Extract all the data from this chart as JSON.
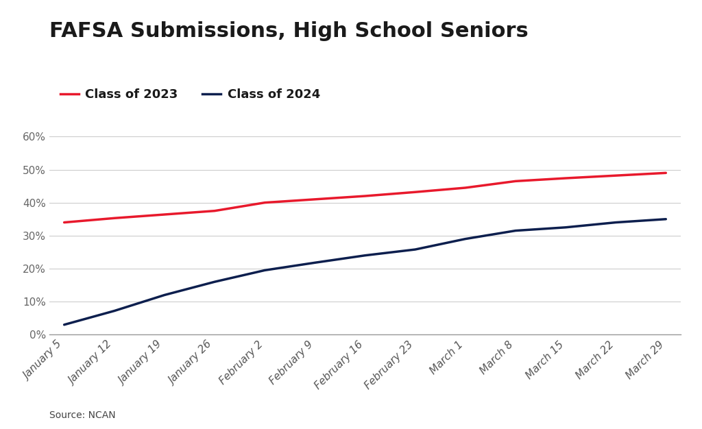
{
  "title": "FAFSA Submissions, High School Seniors",
  "source": "Source: NCAN",
  "x_labels": [
    "January 5",
    "January 12",
    "January 19",
    "January 26",
    "February 2",
    "February 9",
    "February 16",
    "February 23",
    "March 1",
    "March 8",
    "March 15",
    "March 22",
    "March 29"
  ],
  "class2023": [
    0.34,
    0.353,
    0.364,
    0.375,
    0.4,
    0.41,
    0.42,
    0.432,
    0.445,
    0.465,
    0.474,
    0.482,
    0.49
  ],
  "class2024": [
    0.03,
    0.072,
    0.12,
    0.16,
    0.195,
    0.218,
    0.24,
    0.258,
    0.29,
    0.315,
    0.325,
    0.34,
    0.35
  ],
  "color2023": "#e8192c",
  "color2024": "#0d1f4e",
  "legend_label2023": "Class of 2023",
  "legend_label2024": "Class of 2024",
  "ylim": [
    0,
    0.65
  ],
  "yticks": [
    0.0,
    0.1,
    0.2,
    0.3,
    0.4,
    0.5,
    0.6
  ],
  "background_color": "#ffffff",
  "grid_color": "#cccccc",
  "title_color": "#1a1a1a",
  "line_width": 2.5,
  "title_fontsize": 22,
  "tick_fontsize": 11,
  "legend_fontsize": 13,
  "source_fontsize": 10
}
